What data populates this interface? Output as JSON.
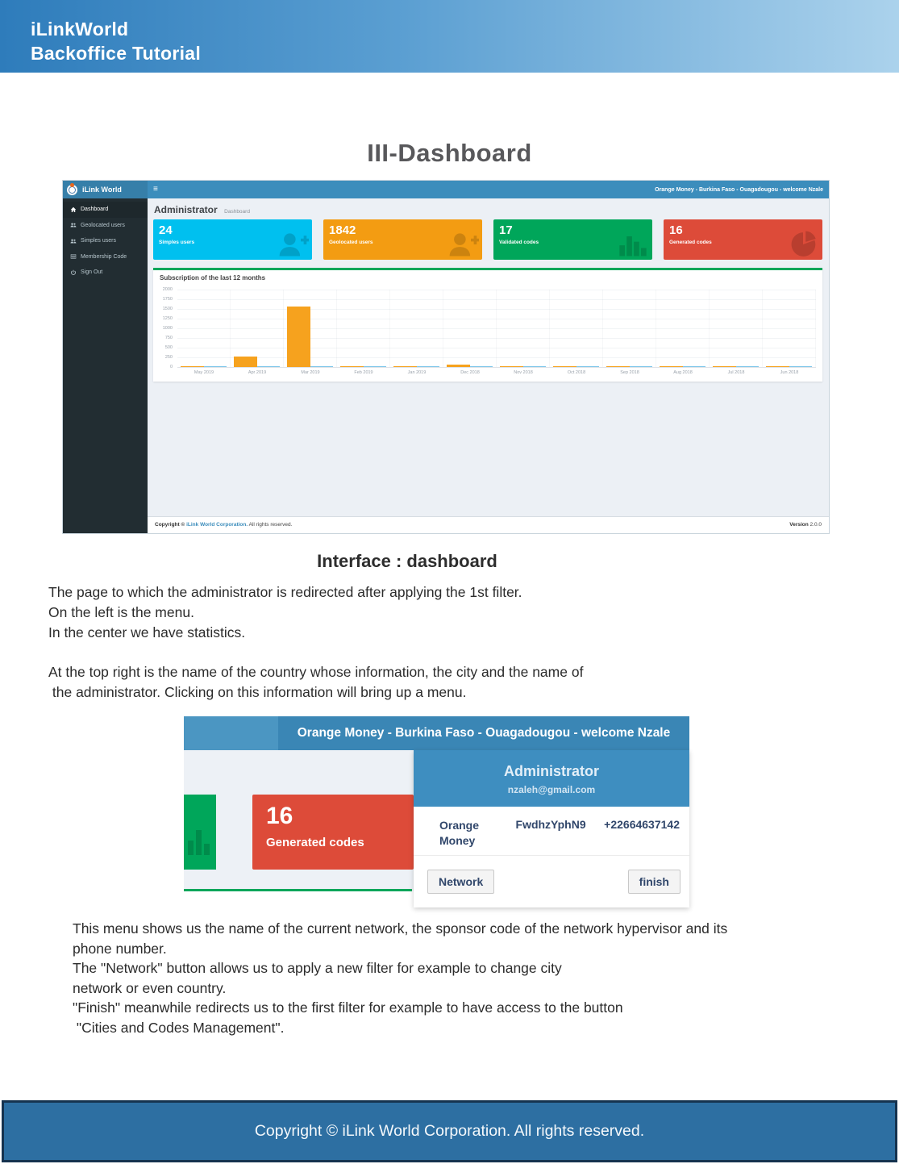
{
  "page": {
    "header": {
      "line1": "iLinkWorld",
      "line2": "Backoffice Tutorial"
    },
    "title": "III-Dashboard",
    "subtitle": "Interface : dashboard",
    "paragraph1": [
      "The page to which the administrator is redirected after applying the 1st filter.",
      "On the left is the menu.",
      "In the center we have statistics."
    ],
    "paragraph2": [
      "At the top right is the name of the country whose information, the city and the name of",
      " the administrator. Clicking on this information will bring up a menu."
    ],
    "paragraph3": [
      "This menu shows us the name of the current network, the sponsor code of the network hypervisor and its",
      "phone number.",
      "The \"Network\" button allows us to apply a new filter for example to change city",
      "network or even country.",
      "\"Finish\" meanwhile redirects us to the first filter for example to have access to the button",
      " \"Cities and Codes Management\"."
    ],
    "footer": "Copyright © iLink World Corporation. All rights reserved."
  },
  "dashboard": {
    "brand": "iLink World",
    "user_banner": "Orange Money - Burkina Faso - Ouagadougou - welcome Nzale",
    "sidebar": [
      {
        "label": "Dashboard",
        "icon": "home-icon",
        "active": true
      },
      {
        "label": "Geolocated users",
        "icon": "users-icon",
        "active": false
      },
      {
        "label": "Simples users",
        "icon": "users-icon",
        "active": false
      },
      {
        "label": "Membership Code",
        "icon": "table-icon",
        "active": false
      },
      {
        "label": "Sign Out",
        "icon": "power-icon",
        "active": false
      }
    ],
    "page_heading": "Administrator",
    "breadcrumb": "Dashboard",
    "cards": [
      {
        "value": "24",
        "label": "Simples users",
        "color": "#00c0ef",
        "icon": "user-plus-icon"
      },
      {
        "value": "1842",
        "label": "Geolocated users",
        "color": "#f39c12",
        "icon": "user-plus-icon"
      },
      {
        "value": "17",
        "label": "Validated codes",
        "color": "#00a65a",
        "icon": "bar-chart-icon"
      },
      {
        "value": "16",
        "label": "Generated codes",
        "color": "#dd4b39",
        "icon": "pie-chart-icon"
      }
    ],
    "footer": {
      "copyright_prefix": "Copyright © ",
      "copyright_link": "iLink World Corporation.",
      "copyright_suffix": " All rights reserved.",
      "version_label": "Version",
      "version_value": " 2.0.0"
    }
  },
  "chart_data": {
    "type": "bar",
    "title": "Subscription of the last 12 months",
    "categories": [
      "May 2019",
      "Apr 2019",
      "Mar 2019",
      "Feb 2019",
      "Jan 2019",
      "Dec 2018",
      "Nov 2018",
      "Oct 2018",
      "Sep 2018",
      "Aug 2018",
      "Jul 2018",
      "Jun 2018"
    ],
    "series": [
      {
        "name": "orange",
        "color": "#f6a21e",
        "values": [
          10,
          270,
          1560,
          15,
          8,
          60,
          10,
          8,
          8,
          10,
          8,
          8
        ]
      },
      {
        "name": "blue",
        "color": "#7cc5ea",
        "values": [
          18,
          15,
          25,
          20,
          18,
          20,
          18,
          18,
          15,
          15,
          15,
          15
        ]
      }
    ],
    "xlabel": "",
    "ylabel": "",
    "ylim": [
      0,
      2000
    ],
    "yticks": [
      "2000",
      "1750",
      "1500",
      "1250",
      "1000",
      "750",
      "500",
      "250",
      "0"
    ],
    "grid": true,
    "legend": false
  },
  "popup": {
    "banner": "Orange Money - Burkina Faso - Ouagadougou - welcome Nzale",
    "card": {
      "value": "16",
      "label": "Generated codes"
    },
    "dropdown": {
      "title": "Administrator",
      "email": "nzaleh@gmail.com",
      "network_name": "Orange Money",
      "sponsor_code": "FwdhzYphN9",
      "phone": "+22664637142",
      "network_button": "Network",
      "finish_button": "finish"
    }
  }
}
